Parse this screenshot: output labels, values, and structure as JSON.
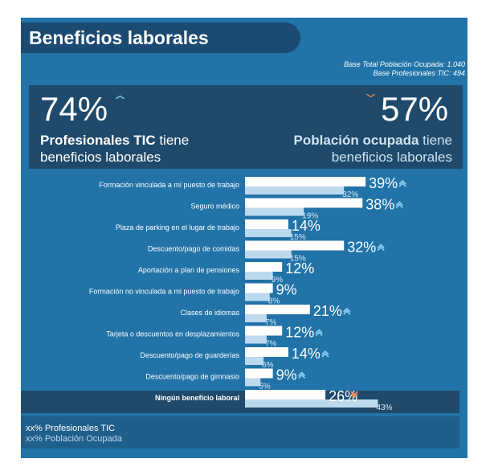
{
  "header": {
    "title": "Beneficios laborales",
    "base_total": "Base Total Población Ocupada: 1.040",
    "base_tic": "Base Profesionales TIC: 494"
  },
  "highlight": {
    "tic_pct": "74%",
    "tic_bold": "Profesionales TIC",
    "tic_rest1": " tiene",
    "tic_rest2": "beneficios laborales",
    "pop_pct": "57%",
    "pop_bold": "Población ocupada",
    "pop_rest1": " tiene",
    "pop_rest2": "beneficios laborales"
  },
  "legend": {
    "tic": "xx%  Profesionales TIC",
    "pop": "xx% Población Ocupada"
  },
  "colors": {
    "tic_bar": "#ffffff",
    "pop_bar": "#bcd9ee",
    "panel": "#2173a8",
    "band": "#1f4a6b",
    "up_arrow": "#8fd3f4",
    "down_arrow": "#f08a5d"
  },
  "chart_data": {
    "type": "bar",
    "orientation": "horizontal",
    "categories": [
      "Formación vinculada a mi puesto de trabajo",
      "Seguro médico",
      "Plaza de parking en el lugar de trabajo",
      "Descuento/pago de comidas",
      "Aportación a plan de pensiones",
      "Formación no vinculada a mi puesto de trabajo",
      "Clases de idiomas",
      "Tarjeta o descuentos en desplazamientos",
      "Descuento/pago de guarderías",
      "Descuento/pago de gimnasio",
      "Ningún beneficio laboral"
    ],
    "series": [
      {
        "name": "Profesionales TIC",
        "values": [
          39,
          38,
          14,
          32,
          12,
          9,
          21,
          12,
          14,
          9,
          26
        ]
      },
      {
        "name": "Población Ocupada",
        "values": [
          32,
          19,
          15,
          15,
          9,
          8,
          7,
          7,
          6,
          5,
          43
        ]
      }
    ],
    "value_labels_tic": [
      "39%",
      "38%",
      "14%",
      "32%",
      "12%",
      "9%",
      "21%",
      "12%",
      "14%",
      "9%",
      "26%"
    ],
    "value_labels_pop": [
      "32%",
      "19%",
      "15%",
      "15%",
      "9%",
      "8%",
      "7%",
      "7%",
      "6%",
      "5%",
      "43%"
    ],
    "markers": [
      "up",
      "up",
      "",
      "up",
      "",
      "",
      "up",
      "up",
      "up",
      "up",
      "down"
    ],
    "xlim": [
      0,
      43
    ]
  }
}
